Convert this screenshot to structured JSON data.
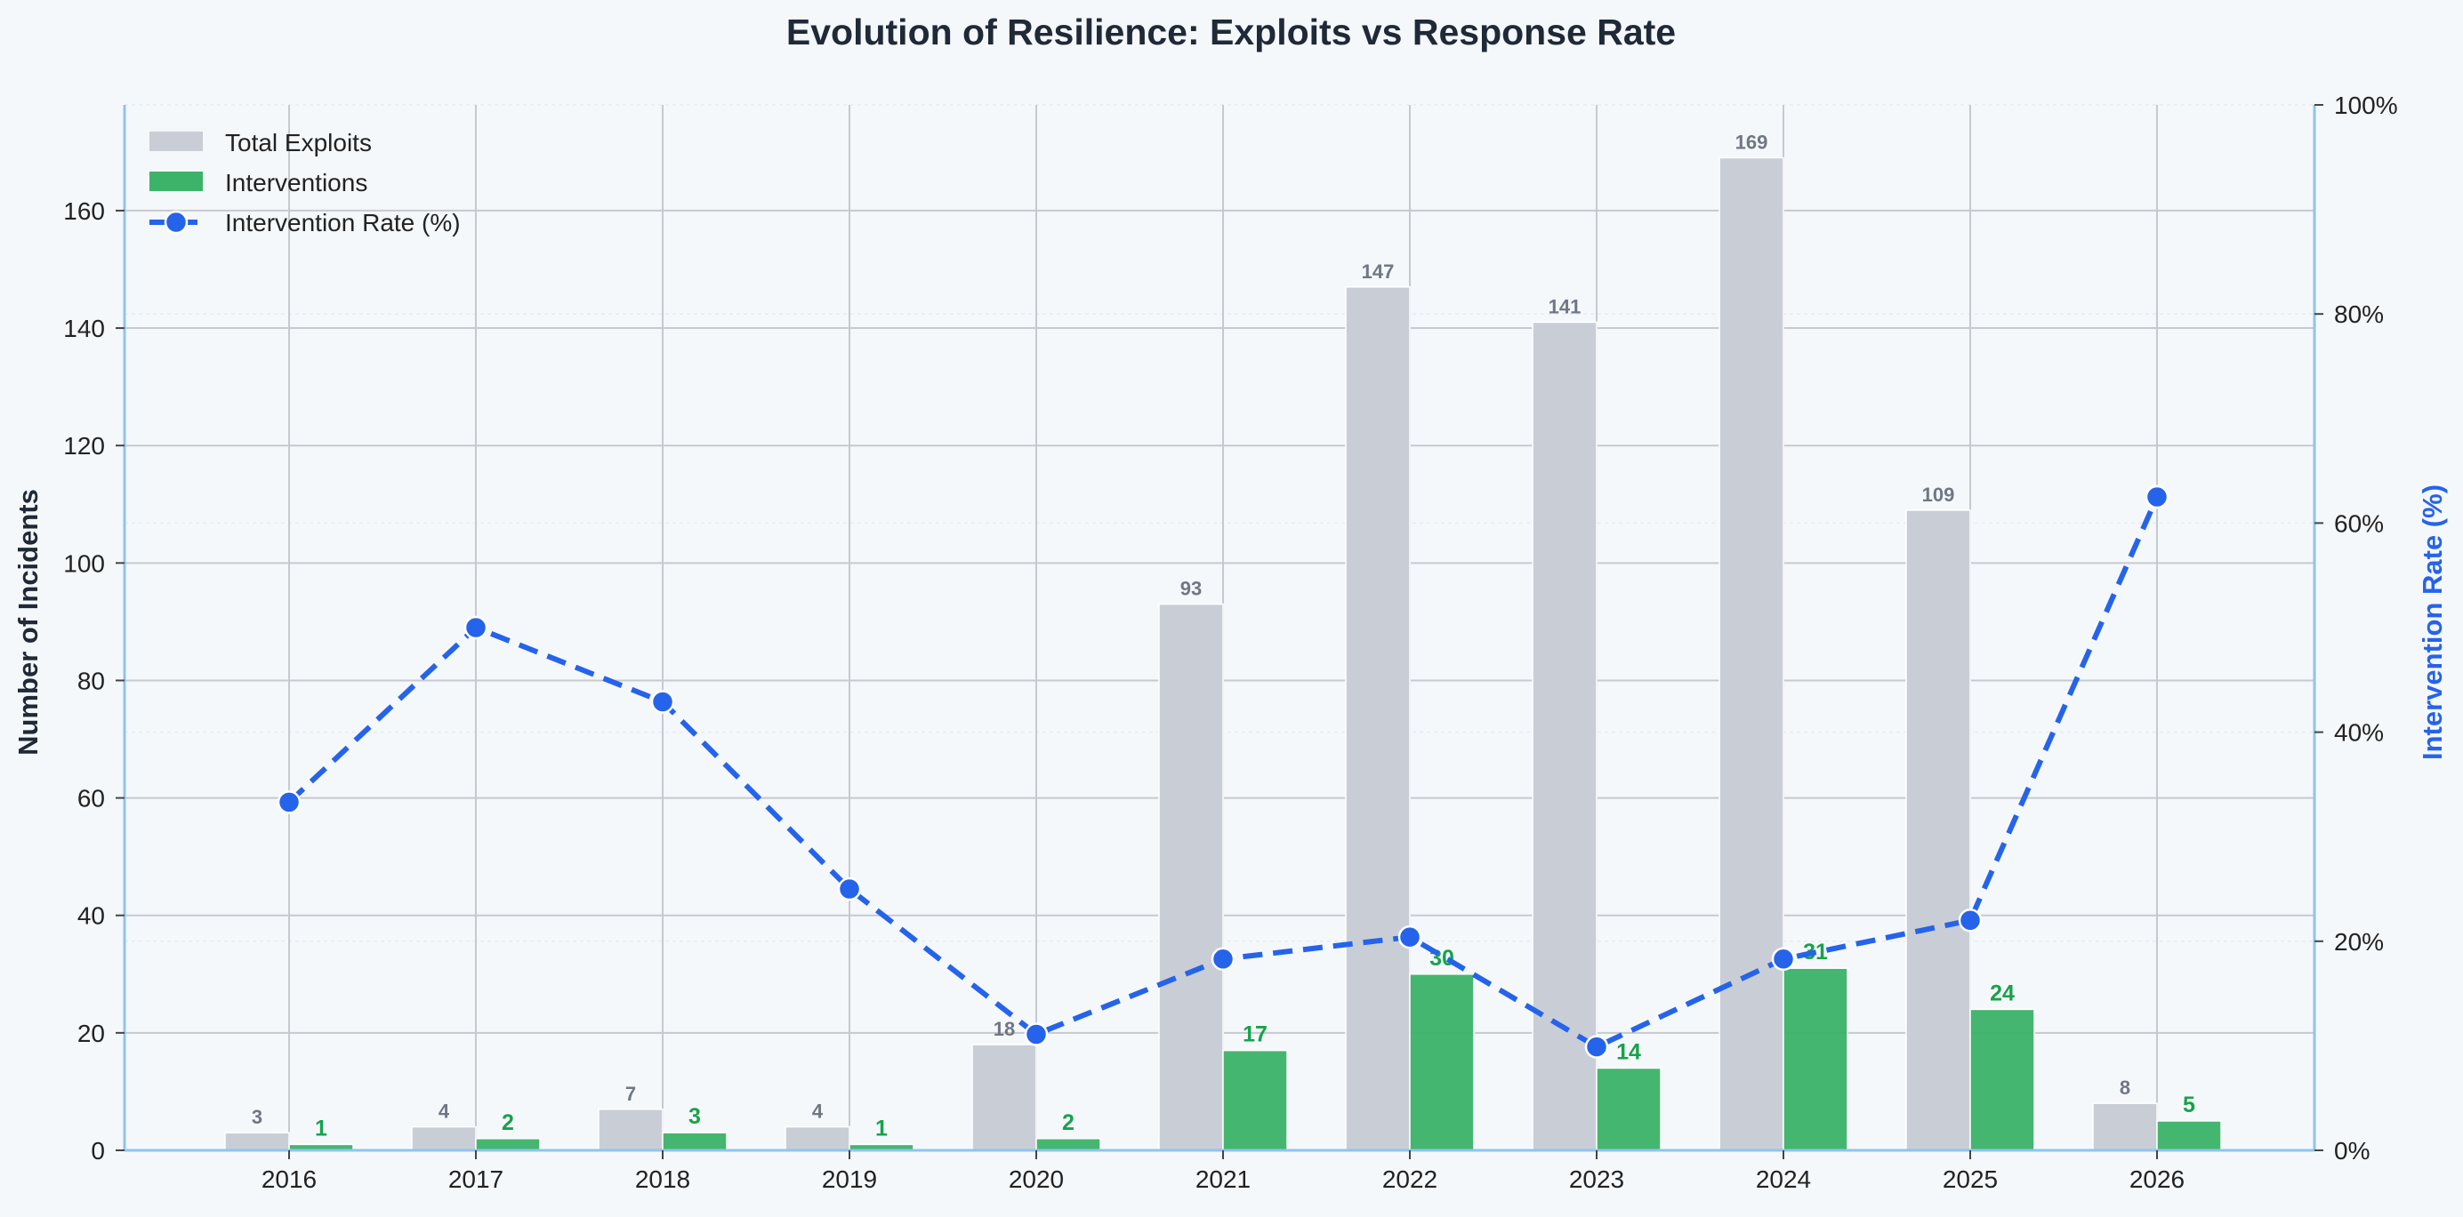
{
  "chart_data": {
    "type": "bar",
    "title": "Evolution of Resilience: Exploits vs Response Rate",
    "xlabel": "",
    "ylabel": "Number of Incidents",
    "y2label": "Intervention Rate (%)",
    "categories": [
      "2016",
      "2017",
      "2018",
      "2019",
      "2020",
      "2021",
      "2022",
      "2023",
      "2024",
      "2025",
      "2026"
    ],
    "ylim": [
      0,
      178
    ],
    "y2lim": [
      0,
      100
    ],
    "yticks": [
      0,
      20,
      40,
      60,
      80,
      100,
      120,
      140,
      160
    ],
    "y2ticks": [
      "0%",
      "20%",
      "40%",
      "60%",
      "80%",
      "100%"
    ],
    "grid": true,
    "legend_position": "top-left",
    "series": [
      {
        "name": "Total Exploits",
        "kind": "bar",
        "color": "#c9ced6",
        "values": [
          3,
          4,
          7,
          4,
          18,
          93,
          147,
          141,
          169,
          109,
          8
        ]
      },
      {
        "name": "Interventions",
        "kind": "bar",
        "color": "#3cb368",
        "values": [
          1,
          2,
          3,
          1,
          2,
          17,
          30,
          14,
          31,
          24,
          5
        ]
      },
      {
        "name": "Intervention Rate (%)",
        "kind": "line",
        "axis": "right",
        "color": "#2563eb",
        "style": "dashed",
        "values": [
          33.3,
          50.0,
          42.9,
          25.0,
          11.1,
          18.3,
          20.4,
          9.9,
          18.3,
          22.0,
          62.5
        ]
      }
    ]
  }
}
